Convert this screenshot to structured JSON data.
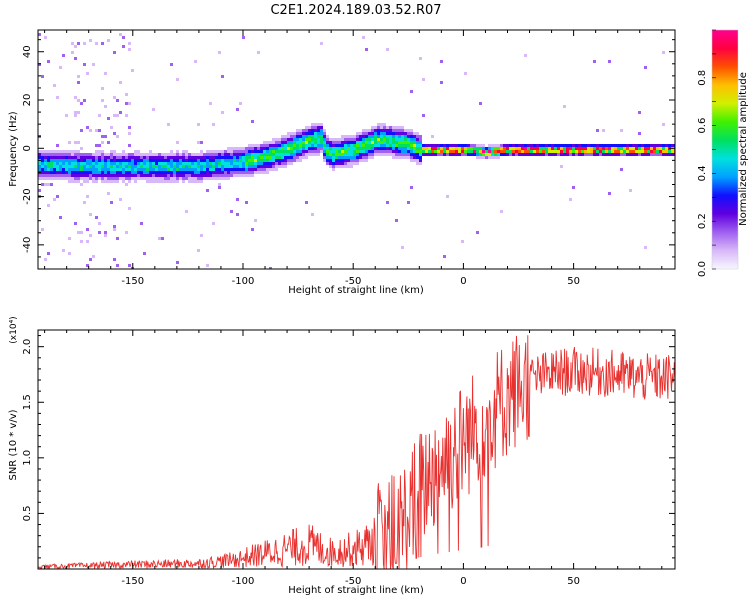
{
  "title": "C2E1.2024.189.03.52.R07",
  "colors": {
    "snr_line": "#e8312f",
    "axis": "#000000",
    "colorbar_stops": [
      "#f7f7ff",
      "#d8b8f8",
      "#a060f0",
      "#6000e0",
      "#1010ff",
      "#00a0ff",
      "#00e0e0",
      "#00e060",
      "#40f000",
      "#d0f000",
      "#ffc000",
      "#ff5000",
      "#ff0040",
      "#ff0090"
    ]
  },
  "chart_data": [
    {
      "type": "heatmap",
      "xlabel": "Height of straight line (km)",
      "ylabel": "Frequency (Hz)",
      "xlim": [
        -193,
        96
      ],
      "ylim": [
        -50,
        49
      ],
      "xticks": [
        -150,
        -100,
        -50,
        0,
        50
      ],
      "yticks": [
        -40,
        -20,
        0,
        20,
        40
      ],
      "colorbar": {
        "label": "Normalized spectral amplitude",
        "range": [
          0.0,
          1.0
        ],
        "ticks": [
          0.0,
          0.2,
          0.4,
          0.6,
          0.8
        ]
      },
      "ridge_center_hz": {
        "x": [
          -193,
          -175,
          -160,
          -150,
          -140,
          -130,
          -120,
          -110,
          -100,
          -90,
          -80,
          -75,
          -70,
          -65,
          -63,
          -60,
          -55,
          -50,
          -45,
          -40,
          -35,
          -30,
          -25,
          -20,
          -10,
          0,
          10,
          20,
          40,
          60,
          80,
          96
        ],
        "y": [
          -6,
          -7,
          -7,
          -7,
          -7,
          -7,
          -7,
          -6,
          -5,
          -3,
          0,
          2,
          4,
          5,
          0,
          -2,
          -1,
          0,
          2,
          4,
          4,
          3,
          2,
          0,
          0,
          0,
          -1,
          0,
          0,
          0,
          0,
          0
        ]
      }
    },
    {
      "type": "line",
      "xlabel": "Height of straight line (km)",
      "ylabel": "SNR (10 * v/v)",
      "y_multiplier": "(x10⁴)",
      "xlim": [
        -193,
        96
      ],
      "ylim": [
        0,
        2.15
      ],
      "xticks": [
        -150,
        -100,
        -50,
        0,
        50
      ],
      "yticks": [
        0.5,
        1.0,
        1.5,
        2.0
      ],
      "trend": {
        "x": [
          -193,
          -150,
          -120,
          -105,
          -95,
          -80,
          -70,
          -60,
          -50,
          -40,
          -30,
          -25,
          -20,
          -15,
          -10,
          -5,
          0,
          5,
          10,
          20,
          30,
          40,
          50,
          60,
          70,
          80,
          96
        ],
        "y": [
          0.02,
          0.04,
          0.05,
          0.08,
          0.12,
          0.18,
          0.22,
          0.15,
          0.18,
          0.25,
          0.35,
          0.5,
          0.7,
          0.85,
          0.95,
          1.05,
          1.15,
          1.25,
          1.35,
          1.55,
          1.7,
          1.76,
          1.78,
          1.77,
          1.75,
          1.72,
          1.72
        ]
      }
    }
  ]
}
